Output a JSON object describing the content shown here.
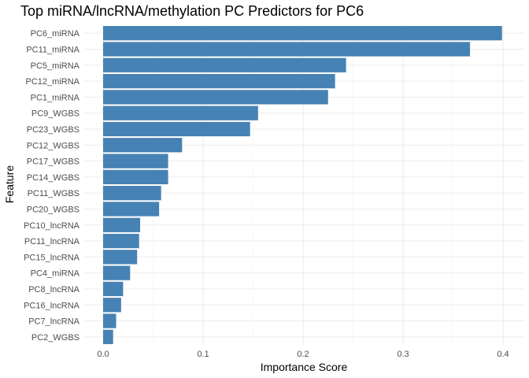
{
  "chart_data": {
    "type": "bar",
    "orientation": "horizontal",
    "title": "Top miRNA/lncRNA/methylation PC Predictors for PC6",
    "xlabel": "Importance Score",
    "ylabel": "Feature",
    "xlim": [
      0,
      0.4
    ],
    "x_ticks": [
      "0.0",
      "0.1",
      "0.2",
      "0.3",
      "0.4"
    ],
    "grid": true,
    "bar_color": "#4682b4",
    "categories": [
      "PC6_miRNA",
      "PC11_miRNA",
      "PC5_miRNA",
      "PC12_miRNA",
      "PC1_miRNA",
      "PC9_WGBS",
      "PC23_WGBS",
      "PC12_WGBS",
      "PC17_WGBS",
      "PC14_WGBS",
      "PC11_WGBS",
      "PC20_WGBS",
      "PC10_lncRNA",
      "PC11_lncRNA",
      "PC15_lncRNA",
      "PC4_miRNA",
      "PC8_lncRNA",
      "PC16_lncRNA",
      "PC7_lncRNA",
      "PC2_WGBS"
    ],
    "values": [
      0.399,
      0.367,
      0.243,
      0.232,
      0.225,
      0.155,
      0.147,
      0.079,
      0.065,
      0.065,
      0.058,
      0.056,
      0.037,
      0.036,
      0.034,
      0.027,
      0.02,
      0.018,
      0.013,
      0.01
    ]
  }
}
